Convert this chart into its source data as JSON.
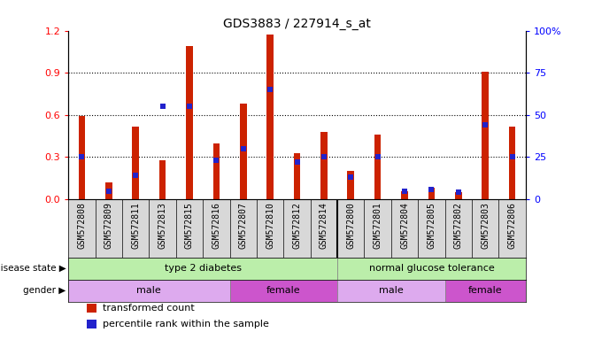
{
  "title": "GDS3883 / 227914_s_at",
  "samples": [
    "GSM572808",
    "GSM572809",
    "GSM572811",
    "GSM572813",
    "GSM572815",
    "GSM572816",
    "GSM572807",
    "GSM572810",
    "GSM572812",
    "GSM572814",
    "GSM572800",
    "GSM572801",
    "GSM572804",
    "GSM572805",
    "GSM572802",
    "GSM572803",
    "GSM572806"
  ],
  "transformed_count": [
    0.59,
    0.12,
    0.52,
    0.28,
    1.09,
    0.4,
    0.68,
    1.17,
    0.33,
    0.48,
    0.2,
    0.46,
    0.06,
    0.08,
    0.05,
    0.91,
    0.52
  ],
  "percentile_rank": [
    25,
    5,
    14,
    55,
    55,
    23,
    30,
    65,
    22,
    25,
    13,
    25,
    5,
    6,
    4,
    44,
    25
  ],
  "bar_color": "#cc2200",
  "dot_color": "#2222cc",
  "ylim_left": [
    0,
    1.2
  ],
  "ylim_right": [
    0,
    100
  ],
  "yticks_left": [
    0,
    0.3,
    0.6,
    0.9,
    1.2
  ],
  "yticks_right": [
    0,
    25,
    50,
    75,
    100
  ],
  "ytick_labels_right": [
    "0",
    "25",
    "50",
    "75",
    "100%"
  ],
  "grid_lines": [
    0.3,
    0.6,
    0.9
  ],
  "bar_width": 0.25,
  "disease_state_groups": [
    {
      "label": "type 2 diabetes",
      "start": 0,
      "end": 9,
      "color": "#bbeeaa"
    },
    {
      "label": "normal glucose tolerance",
      "start": 10,
      "end": 16,
      "color": "#bbeeaa"
    }
  ],
  "gender_groups": [
    {
      "label": "male",
      "start": 0,
      "end": 5,
      "color": "#ddaaee"
    },
    {
      "label": "female",
      "start": 6,
      "end": 9,
      "color": "#cc55cc"
    },
    {
      "label": "male",
      "start": 10,
      "end": 13,
      "color": "#ddaaee"
    },
    {
      "label": "female",
      "start": 14,
      "end": 16,
      "color": "#cc55cc"
    }
  ],
  "legend_items": [
    {
      "label": "transformed count",
      "color": "#cc2200"
    },
    {
      "label": "percentile rank within the sample",
      "color": "#2222cc"
    }
  ],
  "xlabel_fontsize": 7,
  "ylabel_fontsize": 8,
  "title_fontsize": 10
}
